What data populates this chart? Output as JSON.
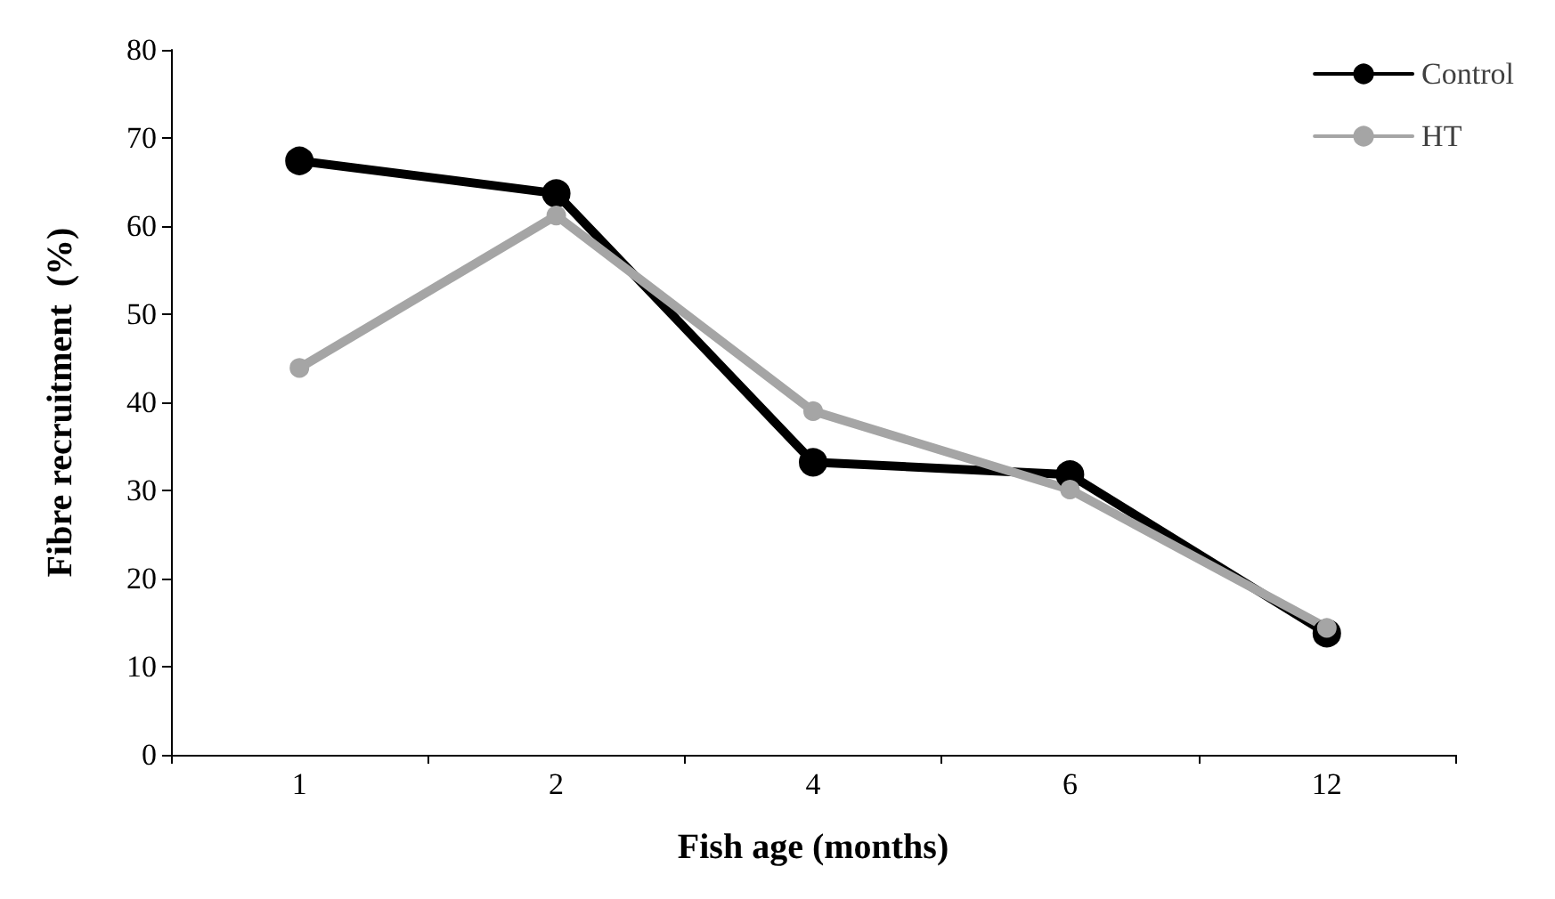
{
  "chart_data": {
    "type": "line",
    "xlabel": "Fish age (months)",
    "ylabel": "Fibre recruitment  (%)",
    "categories": [
      "1",
      "2",
      "4",
      "6",
      "12"
    ],
    "series": [
      {
        "name": "Control",
        "color": "#000000",
        "values": [
          67.4,
          63.7,
          33.2,
          31.8,
          13.8
        ]
      },
      {
        "name": "HT",
        "color": "#a5a5a5",
        "values": [
          43.9,
          61.2,
          39.0,
          30.1,
          14.4
        ]
      }
    ],
    "ylim": [
      0,
      80
    ],
    "yticks": [
      0,
      10,
      20,
      30,
      40,
      50,
      60,
      70,
      80
    ],
    "grid": false,
    "legend": "top right",
    "marker": "circle",
    "line_style": "solid"
  }
}
